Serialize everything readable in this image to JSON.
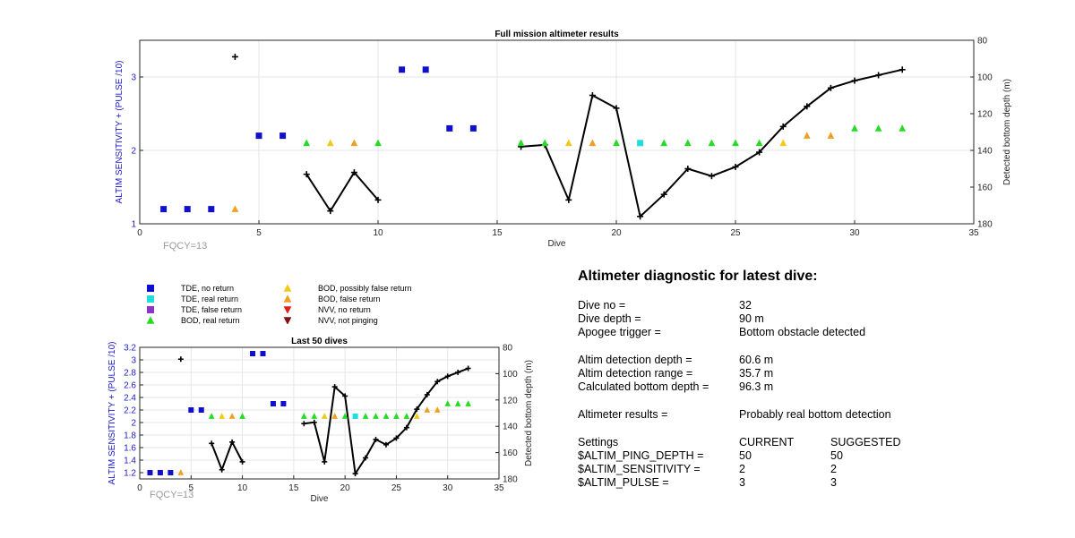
{
  "colors": {
    "tde_no_return": "#1010cc",
    "tde_real_return": "#22dddd",
    "tde_false_return": "#8a35c8",
    "bod_real_return": "#22dd22",
    "bod_possibly_false": "#f2c81a",
    "bod_false_return": "#f0a020",
    "nvv_no_return": "#e02020",
    "nvv_not_pinging": "#801010",
    "left_axis": "#1a1acc",
    "depth_line": "#000000"
  },
  "legend": [
    {
      "key": "tde_no_return",
      "shape": "square",
      "label": "TDE, no return"
    },
    {
      "key": "tde_real_return",
      "shape": "square",
      "label": "TDE, real return"
    },
    {
      "key": "tde_false_return",
      "shape": "square",
      "label": "TDE, false return"
    },
    {
      "key": "bod_real_return",
      "shape": "triangle-up",
      "label": "BOD, real return"
    },
    {
      "key": "bod_possibly_false",
      "shape": "triangle-up",
      "label": "BOD, possibly false return"
    },
    {
      "key": "bod_false_return",
      "shape": "triangle-up",
      "label": "BOD, false return"
    },
    {
      "key": "nvv_no_return",
      "shape": "triangle-down",
      "label": "NVV, no return"
    },
    {
      "key": "nvv_not_pinging",
      "shape": "triangle-down",
      "label": "NVV, not pinging"
    }
  ],
  "chart_data": [
    {
      "type": "scatter",
      "title": "Full mission altimeter results",
      "xlabel": "Dive",
      "ylabel_left": "ALTIM SENSITIVITY + (PULSE /10)",
      "ylabel_right": "Detected bottom depth (m)",
      "xlim": [
        0,
        35
      ],
      "ylim_left": [
        1,
        3.5
      ],
      "ylim_right": [
        80,
        180
      ],
      "right_axis_reversed": true,
      "xticks": [
        0,
        5,
        10,
        15,
        20,
        25,
        30,
        35
      ],
      "yticks_left": [
        1,
        2,
        3
      ],
      "yticks_right": [
        80,
        100,
        120,
        140,
        160,
        180
      ],
      "grid": true,
      "annotation": "FQCY=13",
      "series": [
        {
          "name": "TDE, no return",
          "key": "tde_no_return",
          "shape": "square",
          "x": [
            1,
            2,
            3,
            5,
            6,
            11,
            12,
            13,
            14
          ],
          "y": [
            1.2,
            1.2,
            1.2,
            2.2,
            2.2,
            3.1,
            3.1,
            2.3,
            2.3
          ]
        },
        {
          "name": "TDE, real return",
          "key": "tde_real_return",
          "shape": "square",
          "x": [
            21
          ],
          "y": [
            2.1
          ]
        },
        {
          "name": "BOD, real return",
          "key": "bod_real_return",
          "shape": "triangle-up",
          "x": [
            7,
            10,
            16,
            17,
            20,
            22,
            23,
            24,
            25,
            26,
            30,
            31,
            32
          ],
          "y": [
            2.1,
            2.1,
            2.1,
            2.1,
            2.1,
            2.1,
            2.1,
            2.1,
            2.1,
            2.1,
            2.3,
            2.3,
            2.3
          ]
        },
        {
          "name": "BOD, possibly false return",
          "key": "bod_possibly_false",
          "shape": "triangle-up",
          "x": [
            8,
            18,
            27
          ],
          "y": [
            2.1,
            2.1,
            2.1
          ]
        },
        {
          "name": "BOD, false return",
          "key": "bod_false_return",
          "shape": "triangle-up",
          "x": [
            4,
            9,
            19,
            28,
            29
          ],
          "y": [
            1.2,
            2.1,
            2.1,
            2.2,
            2.2
          ]
        }
      ],
      "depth_segments": [
        {
          "x": [
            4
          ],
          "y": [
            89
          ]
        },
        {
          "x": [
            7,
            8,
            9,
            10
          ],
          "y": [
            153,
            173,
            152,
            167
          ]
        },
        {
          "x": [
            16,
            17,
            18,
            19,
            20,
            21,
            22,
            23,
            24,
            25,
            26,
            27,
            28,
            29,
            30,
            31,
            32
          ],
          "y": [
            138,
            137,
            167,
            110,
            117,
            176,
            164,
            150,
            154,
            149,
            141,
            127,
            116,
            106,
            102,
            99,
            96
          ]
        }
      ]
    },
    {
      "type": "scatter",
      "title": "Last 50 dives",
      "xlabel": "Dive",
      "ylabel_left": "ALTIM SENSITIVITY + (PULSE /10)",
      "ylabel_right": "Detected bottom depth (m)",
      "xlim": [
        0,
        35
      ],
      "ylim_left": [
        1.1,
        3.2
      ],
      "ylim_right": [
        80,
        180
      ],
      "right_axis_reversed": true,
      "xticks": [
        0,
        5,
        10,
        15,
        20,
        25,
        30,
        35
      ],
      "yticks_left": [
        1.2,
        1.4,
        1.6,
        1.8,
        2,
        2.2,
        2.4,
        2.6,
        2.8,
        3,
        3.2
      ],
      "yticks_right": [
        80,
        100,
        120,
        140,
        160,
        180
      ],
      "grid": true,
      "annotation": "FQCY=13",
      "same_series_as": 0
    }
  ],
  "diagnostic": {
    "title": "Altimeter diagnostic for latest dive:",
    "dive_no_label": "Dive no =",
    "dive_no_value": "32",
    "dive_depth_label": "Dive depth =",
    "dive_depth_value": "90 m",
    "apogee_label": "Apogee trigger =",
    "apogee_value": "Bottom obstacle detected",
    "detect_depth_label": "Altim detection depth =",
    "detect_depth_value": "60.6 m",
    "detect_range_label": "Altim detection range =",
    "detect_range_value": "35.7 m",
    "calc_depth_label": "Calculated bottom depth =",
    "calc_depth_value": "96.3 m",
    "results_label": "Altimeter results =",
    "results_value": "Probably real bottom detection",
    "settings_label": "Settings",
    "current_label": "CURRENT",
    "suggested_label": "SUGGESTED",
    "settings": [
      {
        "name": "$ALTIM_PING_DEPTH =",
        "current": "50",
        "suggested": "50"
      },
      {
        "name": "$ALTIM_SENSITIVITY =",
        "current": "2",
        "suggested": "2"
      },
      {
        "name": "$ALTIM_PULSE =",
        "current": "3",
        "suggested": "3"
      }
    ]
  }
}
